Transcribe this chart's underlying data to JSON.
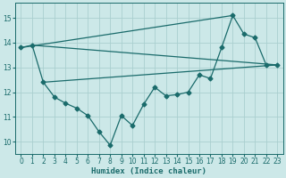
{
  "xlabel": "Humidex (Indice chaleur)",
  "xlim": [
    -0.5,
    23.5
  ],
  "ylim": [
    9.5,
    15.6
  ],
  "yticks": [
    10,
    11,
    12,
    13,
    14,
    15
  ],
  "xticks": [
    0,
    1,
    2,
    3,
    4,
    5,
    6,
    7,
    8,
    9,
    10,
    11,
    12,
    13,
    14,
    15,
    16,
    17,
    18,
    19,
    20,
    21,
    22,
    23
  ],
  "bg_color": "#cce8e8",
  "line_color": "#1a6b6b",
  "grid_color": "#aacfcf",
  "line1_x": [
    0,
    1,
    2,
    3,
    4,
    5,
    6,
    7,
    8,
    9,
    10,
    11,
    12,
    13,
    14,
    15,
    16,
    17,
    18,
    19,
    20,
    21,
    22,
    23
  ],
  "line1_y": [
    13.8,
    13.9,
    12.4,
    11.8,
    11.55,
    11.35,
    11.05,
    10.4,
    9.85,
    11.05,
    10.65,
    11.5,
    12.2,
    11.85,
    11.9,
    12.0,
    12.7,
    12.55,
    13.8,
    15.1,
    14.35,
    14.2,
    13.1,
    13.1
  ],
  "line2_x": [
    1,
    23
  ],
  "line2_y": [
    13.9,
    13.1
  ],
  "line3_x": [
    2,
    23
  ],
  "line3_y": [
    12.4,
    13.1
  ],
  "line4_x": [
    0,
    19
  ],
  "line4_y": [
    13.8,
    15.1
  ]
}
